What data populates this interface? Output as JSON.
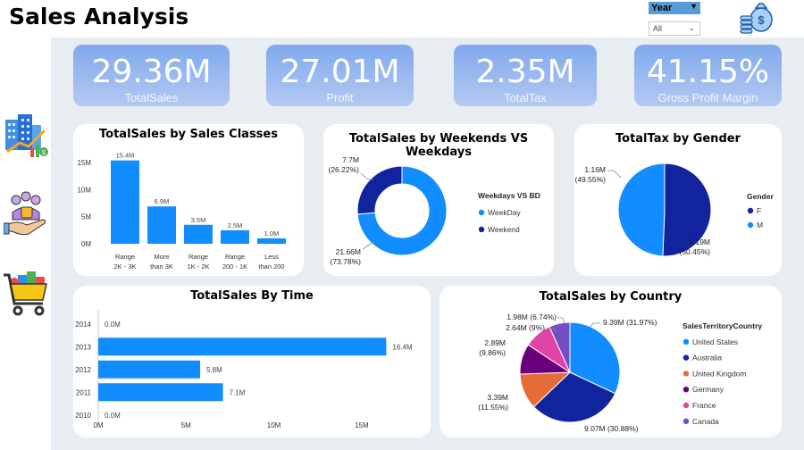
{
  "header": {
    "title": "Sales Analysis"
  },
  "slicer": {
    "label": "Year",
    "value": "All"
  },
  "kpis": [
    {
      "value": "29.36M",
      "label": "TotalSales"
    },
    {
      "value": "27.01M",
      "label": "Profit"
    },
    {
      "value": "2.35M",
      "label": "TotalTax"
    },
    {
      "value": "41.15%",
      "label": "Gross Profit Margin"
    }
  ],
  "sidebar": {
    "icons": [
      "buildings-chart-icon",
      "customers-hand-icon",
      "shopping-cart-icon"
    ]
  },
  "colors": {
    "primary": "#118DFF",
    "navy": "#12239E",
    "orange": "#E66C37",
    "purple": "#6B007B",
    "pink": "#E044A7",
    "violet": "#744EC2"
  },
  "chart_data": [
    {
      "id": "classes",
      "type": "bar",
      "title": "TotalSales by Sales Classes",
      "categories": [
        [
          "Range",
          "2K - 3K"
        ],
        [
          "More",
          "than 3K"
        ],
        [
          "Range",
          "1K - 2K"
        ],
        [
          "Range",
          "200 - 1K"
        ],
        [
          "Less",
          "than 200"
        ]
      ],
      "values": [
        15.4,
        6.9,
        3.5,
        2.5,
        1.0
      ],
      "data_labels": [
        "15.4M",
        "6.9M",
        "3.5M",
        "2.5M",
        "1.0M"
      ],
      "y_ticks": [
        0,
        5,
        10,
        15
      ],
      "y_tick_labels": [
        "0M",
        "5M",
        "10M",
        "15M"
      ],
      "ylim": [
        0,
        16.5
      ]
    },
    {
      "id": "weekdays",
      "type": "pie",
      "donut": true,
      "title": "TotalSales by Weekends VS Weekdays",
      "legend_title": "Weekdays VS BD",
      "slices": [
        {
          "name": "WeekDay",
          "value": 21.66,
          "label": [
            "21.66M",
            "(73.78%)"
          ],
          "color": "#118DFF"
        },
        {
          "name": "Weekend",
          "value": 7.7,
          "label": [
            "7.7M",
            "(26.22%)"
          ],
          "color": "#12239E"
        }
      ]
    },
    {
      "id": "gender",
      "type": "pie",
      "title": "TotalTax by Gender",
      "legend_title": "Gender",
      "slices": [
        {
          "name": "F",
          "value": 1.19,
          "label": [
            "1.19M",
            "(50.45%)"
          ],
          "color": "#12239E"
        },
        {
          "name": "M",
          "value": 1.16,
          "label": [
            "1.16M",
            "(49.55%)"
          ],
          "color": "#118DFF"
        }
      ]
    },
    {
      "id": "time",
      "type": "bar",
      "orientation": "horizontal",
      "title": "TotalSales By Time",
      "categories": [
        "2014",
        "2013",
        "2012",
        "2011",
        "2010"
      ],
      "values": [
        0.0,
        16.4,
        5.8,
        7.1,
        0.0
      ],
      "data_labels": [
        "0.0M",
        "16.4M",
        "5.8M",
        "7.1M",
        "0.0M"
      ],
      "x_ticks": [
        0,
        5,
        10,
        15
      ],
      "x_tick_labels": [
        "0M",
        "5M",
        "10M",
        "15M"
      ],
      "xlim": [
        0,
        17.5
      ]
    },
    {
      "id": "country",
      "type": "pie",
      "title": "TotalSales by Country",
      "legend_title": "SalesTerritoryCountry",
      "slices": [
        {
          "name": "United States",
          "value": 9.39,
          "label": [
            "9.39M (31.97%)"
          ],
          "color": "#118DFF"
        },
        {
          "name": "Australia",
          "value": 9.07,
          "label": [
            "9.07M (30.88%)"
          ],
          "color": "#12239E"
        },
        {
          "name": "United Kingdom",
          "value": 3.39,
          "label": [
            "3.39M",
            "(11.55%)"
          ],
          "color": "#E66C37"
        },
        {
          "name": "Germany",
          "value": 2.89,
          "label": [
            "2.89M",
            "(9.86%)"
          ],
          "color": "#6B007B"
        },
        {
          "name": "France",
          "value": 2.64,
          "label": [
            "2.64M (9%)"
          ],
          "color": "#E044A7"
        },
        {
          "name": "Canada",
          "value": 1.98,
          "label": [
            "1.98M (6.74%)"
          ],
          "color": "#744EC2"
        }
      ]
    }
  ]
}
